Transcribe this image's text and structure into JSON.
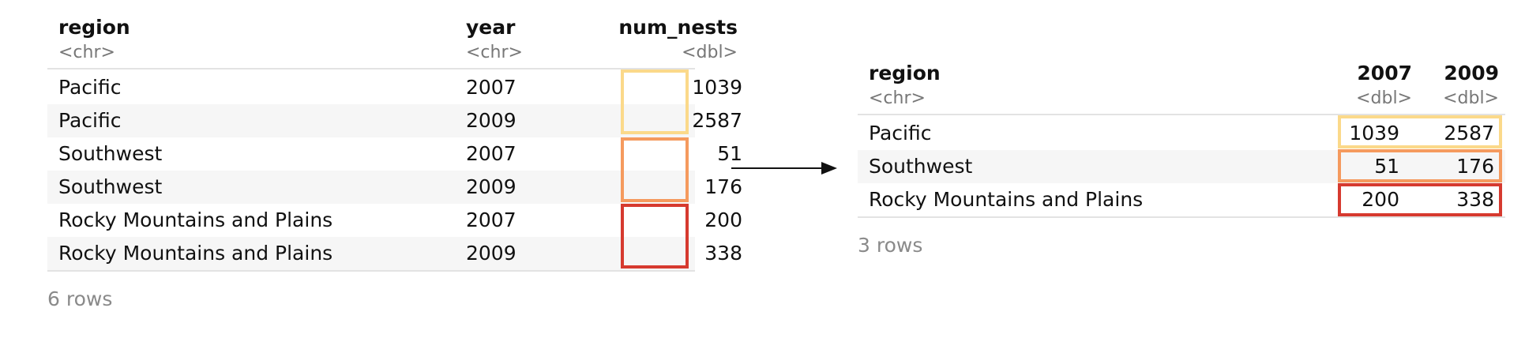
{
  "left_table": {
    "columns": [
      {
        "name": "region",
        "type": "<chr>"
      },
      {
        "name": "year",
        "type": "<chr>"
      },
      {
        "name": "num_nests",
        "type": "<dbl>"
      }
    ],
    "rows": [
      {
        "region": "Pacific",
        "year": "2007",
        "num_nests": "1039"
      },
      {
        "region": "Pacific",
        "year": "2009",
        "num_nests": "2587"
      },
      {
        "region": "Southwest",
        "year": "2007",
        "num_nests": "51"
      },
      {
        "region": "Southwest",
        "year": "2009",
        "num_nests": "176"
      },
      {
        "region": "Rocky Mountains and Plains",
        "year": "2007",
        "num_nests": "200"
      },
      {
        "region": "Rocky Mountains and Plains",
        "year": "2009",
        "num_nests": "338"
      }
    ],
    "footer": "6 rows"
  },
  "right_table": {
    "columns": [
      {
        "name": "region",
        "type": "<chr>"
      },
      {
        "name": "2007",
        "type": "<dbl>"
      },
      {
        "name": "2009",
        "type": "<dbl>"
      }
    ],
    "rows": [
      {
        "region": "Pacific",
        "y2007": "1039",
        "y2009": "2587"
      },
      {
        "region": "Southwest",
        "y2007": "51",
        "y2009": "176"
      },
      {
        "region": "Rocky Mountains and Plains",
        "y2007": "200",
        "y2009": "338"
      }
    ],
    "footer": "3 rows"
  },
  "highlight_colors": {
    "pacific": "#fbd98a",
    "southwest": "#f59a5e",
    "rocky": "#d63a2f"
  }
}
